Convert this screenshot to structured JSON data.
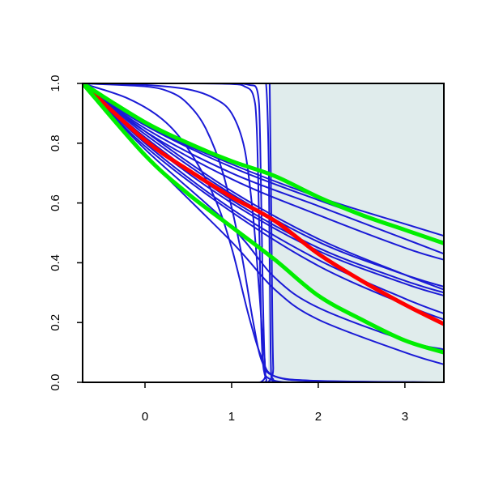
{
  "chart_data": {
    "type": "line",
    "title": "",
    "xlabel": "",
    "ylabel": "",
    "xlim": [
      -0.72,
      3.45
    ],
    "ylim": [
      0.0,
      1.0
    ],
    "x_ticks": [
      0,
      1,
      2,
      3
    ],
    "x_tick_labels": [
      "0",
      "1",
      "2",
      "3"
    ],
    "y_ticks": [
      0.0,
      0.2,
      0.4,
      0.6,
      0.8,
      1.0
    ],
    "y_tick_labels": [
      "0.0",
      "0.2",
      "0.4",
      "0.6",
      "0.8",
      "1.0"
    ],
    "grid": false,
    "legend": "none",
    "shaded_region": {
      "x_from": 1.42,
      "x_to": 3.45,
      "color": "#e0ecec"
    },
    "colors": {
      "blue": "#1a1ad6",
      "red": "#ff0000",
      "green": "#00ee00"
    },
    "series": [
      {
        "color": "#1a1ad6",
        "width": 2,
        "points": [
          [
            -0.72,
            1.0
          ],
          [
            0.0,
            0.83
          ],
          [
            1.0,
            0.63
          ],
          [
            2.0,
            0.47
          ],
          [
            3.0,
            0.36
          ],
          [
            3.45,
            0.32
          ]
        ]
      },
      {
        "color": "#1a1ad6",
        "width": 2,
        "points": [
          [
            -0.72,
            1.0
          ],
          [
            0.0,
            0.82
          ],
          [
            1.0,
            0.61
          ],
          [
            2.0,
            0.45
          ],
          [
            3.0,
            0.34
          ],
          [
            3.45,
            0.3
          ]
        ]
      },
      {
        "color": "#1a1ad6",
        "width": 2,
        "points": [
          [
            -0.72,
            1.0
          ],
          [
            0.0,
            0.81
          ],
          [
            1.0,
            0.6
          ],
          [
            2.0,
            0.44
          ],
          [
            3.0,
            0.33
          ],
          [
            3.45,
            0.29
          ]
        ]
      },
      {
        "color": "#1a1ad6",
        "width": 2,
        "points": [
          [
            -0.72,
            1.0
          ],
          [
            0.0,
            0.8
          ],
          [
            1.0,
            0.58
          ],
          [
            2.0,
            0.41
          ],
          [
            3.0,
            0.28
          ],
          [
            3.45,
            0.23
          ]
        ]
      },
      {
        "color": "#1a1ad6",
        "width": 2,
        "points": [
          [
            -0.72,
            1.0
          ],
          [
            0.0,
            0.79
          ],
          [
            1.0,
            0.57
          ],
          [
            2.0,
            0.39
          ],
          [
            3.0,
            0.26
          ],
          [
            3.45,
            0.21
          ]
        ]
      },
      {
        "color": "#1a1ad6",
        "width": 2,
        "points": [
          [
            -0.72,
            1.0
          ],
          [
            0.0,
            0.85
          ],
          [
            1.0,
            0.7
          ],
          [
            2.0,
            0.59
          ],
          [
            3.0,
            0.48
          ],
          [
            3.45,
            0.43
          ]
        ]
      },
      {
        "color": "#1a1ad6",
        "width": 2,
        "points": [
          [
            -0.72,
            1.0
          ],
          [
            0.0,
            0.86
          ],
          [
            1.0,
            0.72
          ],
          [
            2.0,
            0.61
          ],
          [
            3.0,
            0.51
          ],
          [
            3.45,
            0.47
          ]
        ]
      },
      {
        "color": "#1a1ad6",
        "width": 2,
        "points": [
          [
            -0.72,
            1.0
          ],
          [
            0.0,
            0.86
          ],
          [
            1.0,
            0.73
          ],
          [
            2.0,
            0.62
          ],
          [
            3.0,
            0.53
          ],
          [
            3.45,
            0.49
          ]
        ]
      },
      {
        "color": "#1a1ad6",
        "width": 2,
        "points": [
          [
            -0.72,
            1.0
          ],
          [
            0.0,
            0.84
          ],
          [
            1.0,
            0.68
          ],
          [
            2.0,
            0.56
          ],
          [
            3.0,
            0.45
          ],
          [
            3.45,
            0.41
          ]
        ]
      },
      {
        "color": "#1a1ad6",
        "width": 2,
        "points": [
          [
            -0.72,
            1.0
          ],
          [
            0.0,
            0.84
          ],
          [
            1.0,
            0.64
          ],
          [
            2.0,
            0.48
          ],
          [
            3.0,
            0.36
          ],
          [
            3.45,
            0.31
          ]
        ]
      },
      {
        "color": "#1a1ad6",
        "width": 2,
        "points": [
          [
            -0.72,
            1.0
          ],
          [
            0.0,
            0.78
          ],
          [
            1.0,
            0.52
          ],
          [
            1.5,
            0.35
          ],
          [
            2.0,
            0.25
          ],
          [
            3.0,
            0.14
          ],
          [
            3.45,
            0.11
          ]
        ]
      },
      {
        "color": "#1a1ad6",
        "width": 2,
        "points": [
          [
            -0.72,
            1.0
          ],
          [
            0.0,
            0.76
          ],
          [
            1.0,
            0.47
          ],
          [
            1.5,
            0.31
          ],
          [
            2.0,
            0.21
          ],
          [
            3.0,
            0.1
          ],
          [
            3.45,
            0.06
          ]
        ]
      },
      {
        "color": "#1a1ad6",
        "width": 2,
        "points": [
          [
            -0.72,
            1.0
          ],
          [
            0.0,
            0.99
          ],
          [
            0.3,
            0.97
          ],
          [
            0.5,
            0.93
          ],
          [
            0.7,
            0.85
          ],
          [
            0.9,
            0.7
          ],
          [
            1.1,
            0.45
          ],
          [
            1.25,
            0.2
          ],
          [
            1.35,
            0.07
          ],
          [
            1.5,
            0.02
          ],
          [
            2.0,
            0.005
          ],
          [
            3.45,
            0.0
          ]
        ]
      },
      {
        "color": "#1a1ad6",
        "width": 2,
        "points": [
          [
            -0.72,
            1.0
          ],
          [
            -0.2,
            0.95
          ],
          [
            0.2,
            0.88
          ],
          [
            0.5,
            0.78
          ],
          [
            0.8,
            0.62
          ],
          [
            1.0,
            0.45
          ],
          [
            1.2,
            0.22
          ],
          [
            1.35,
            0.08
          ],
          [
            1.5,
            0.02
          ],
          [
            2.0,
            0.004
          ],
          [
            3.45,
            0.0
          ]
        ]
      },
      {
        "color": "#1a1ad6",
        "width": 2,
        "points": [
          [
            -0.72,
            1.0
          ],
          [
            0.0,
            0.995
          ],
          [
            0.5,
            0.98
          ],
          [
            0.8,
            0.95
          ],
          [
            1.0,
            0.9
          ],
          [
            1.15,
            0.78
          ],
          [
            1.25,
            0.55
          ],
          [
            1.32,
            0.3
          ],
          [
            1.38,
            0.08
          ],
          [
            1.45,
            0.01
          ],
          [
            2.0,
            0.0
          ],
          [
            3.45,
            0.0
          ]
        ]
      },
      {
        "color": "#1a1ad6",
        "width": 2,
        "points": [
          [
            -0.72,
            1.0
          ],
          [
            0.5,
            1.0
          ],
          [
            1.0,
            0.998
          ],
          [
            1.15,
            0.99
          ],
          [
            1.25,
            0.96
          ],
          [
            1.29,
            0.85
          ],
          [
            1.32,
            0.5
          ],
          [
            1.35,
            0.12
          ],
          [
            1.4,
            0.01
          ],
          [
            1.5,
            0.0
          ],
          [
            3.45,
            0.0
          ]
        ]
      },
      {
        "color": "#1a1ad6",
        "width": 2,
        "points": [
          [
            -0.72,
            1.0
          ],
          [
            0.5,
            1.0
          ],
          [
            1.0,
            1.0
          ],
          [
            1.2,
            0.995
          ],
          [
            1.3,
            0.97
          ],
          [
            1.33,
            0.8
          ],
          [
            1.36,
            0.3
          ],
          [
            1.39,
            0.03
          ],
          [
            1.45,
            0.0
          ],
          [
            3.45,
            0.0
          ]
        ]
      },
      {
        "color": "#1a1ad6",
        "width": 2,
        "points": [
          [
            -0.72,
            1.0
          ],
          [
            1.0,
            1.0
          ],
          [
            1.35,
            1.0
          ],
          [
            1.4,
            0.99
          ],
          [
            1.43,
            0.7
          ],
          [
            1.45,
            0.1
          ],
          [
            1.48,
            0.01
          ],
          [
            1.6,
            0.0
          ],
          [
            3.45,
            0.0
          ]
        ]
      },
      {
        "color": "#1a1ad6",
        "width": 2,
        "points": [
          [
            -0.72,
            1.0
          ],
          [
            1.0,
            1.0
          ],
          [
            1.42,
            1.0
          ],
          [
            1.44,
            0.98
          ],
          [
            1.46,
            0.5
          ],
          [
            1.48,
            0.05
          ],
          [
            1.52,
            0.0
          ],
          [
            3.45,
            0.0
          ]
        ]
      },
      {
        "color": "#ff0000",
        "width": 5,
        "points": [
          [
            -0.72,
            1.0
          ],
          [
            0.0,
            0.81
          ],
          [
            0.5,
            0.71
          ],
          [
            1.0,
            0.62
          ],
          [
            1.5,
            0.54
          ],
          [
            2.0,
            0.43
          ],
          [
            2.5,
            0.34
          ],
          [
            3.0,
            0.26
          ],
          [
            3.45,
            0.195
          ]
        ]
      },
      {
        "color": "#00ee00",
        "width": 5,
        "points": [
          [
            -0.72,
            1.0
          ],
          [
            0.0,
            0.87
          ],
          [
            0.5,
            0.8
          ],
          [
            1.0,
            0.74
          ],
          [
            1.5,
            0.69
          ],
          [
            2.0,
            0.62
          ],
          [
            2.5,
            0.56
          ],
          [
            3.0,
            0.51
          ],
          [
            3.45,
            0.465
          ]
        ]
      },
      {
        "color": "#00ee00",
        "width": 5,
        "points": [
          [
            -0.72,
            1.0
          ],
          [
            0.0,
            0.76
          ],
          [
            0.5,
            0.63
          ],
          [
            1.0,
            0.52
          ],
          [
            1.5,
            0.41
          ],
          [
            2.0,
            0.29
          ],
          [
            2.5,
            0.21
          ],
          [
            3.0,
            0.14
          ],
          [
            3.45,
            0.1
          ]
        ]
      }
    ]
  }
}
